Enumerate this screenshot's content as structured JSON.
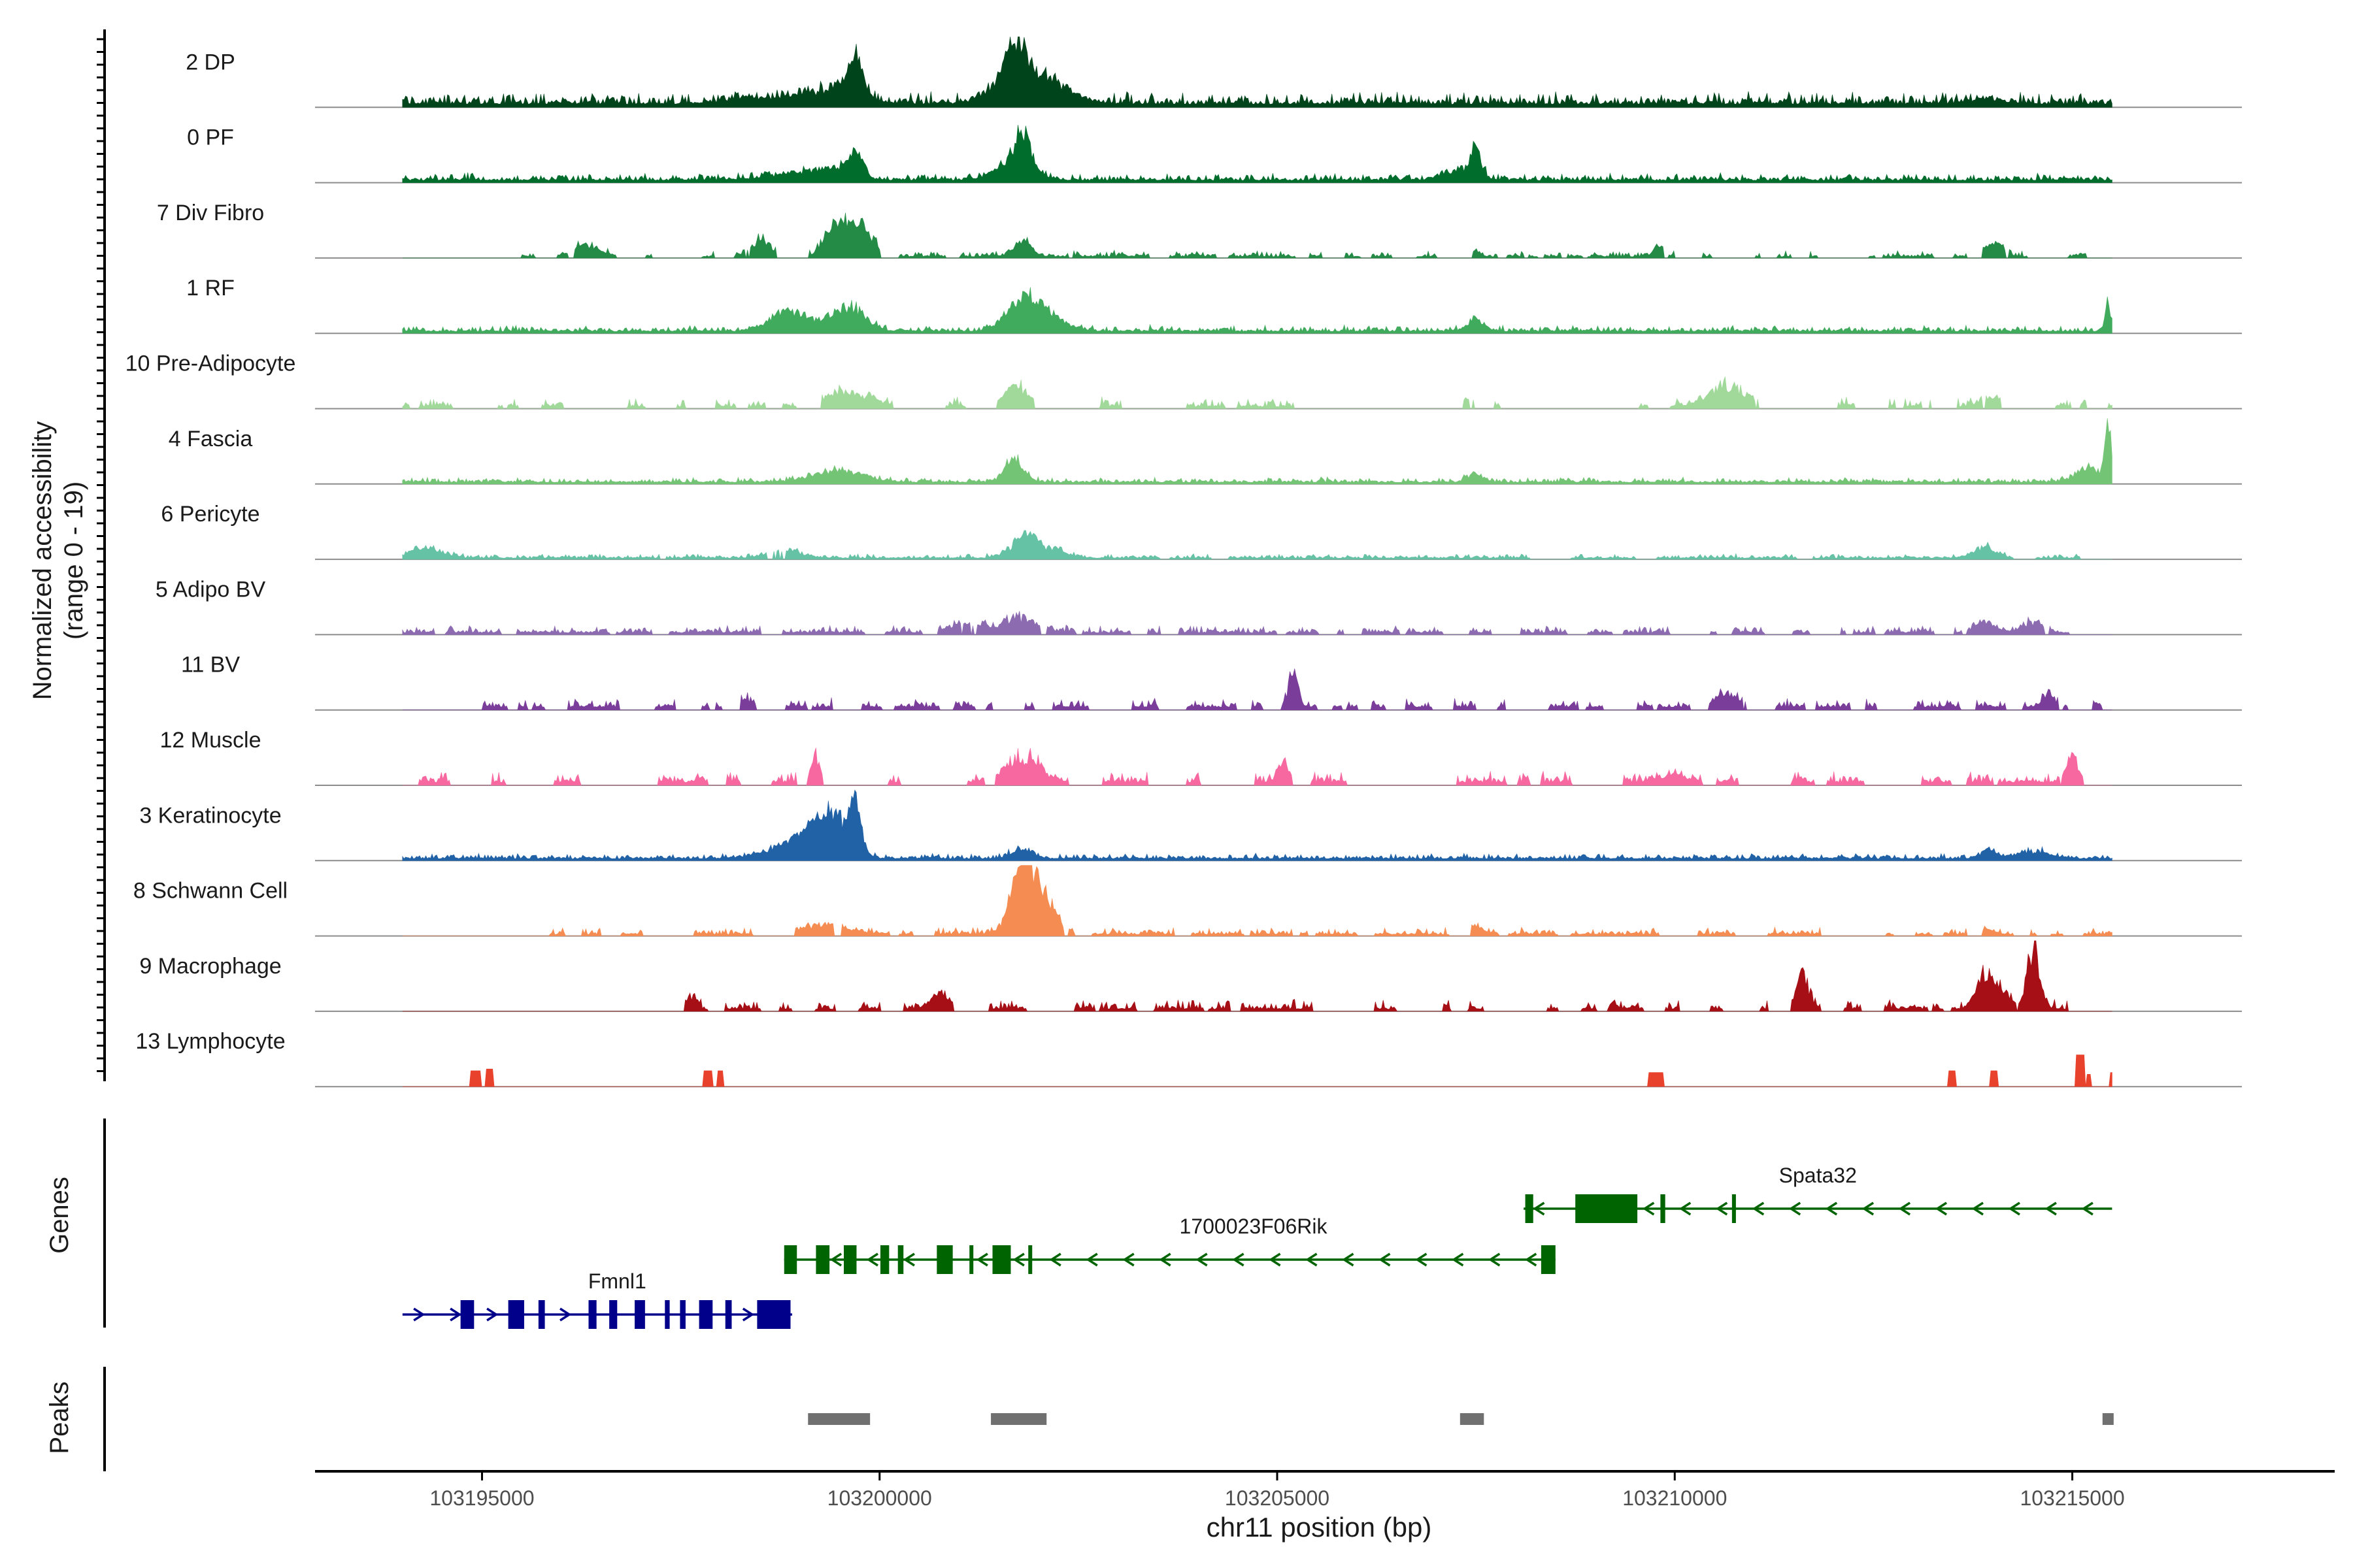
{
  "chart_data": {
    "type": "area",
    "title": "",
    "xlabel": "chr11 position (bp)",
    "ylabel_line1": "Normalized accessibility",
    "ylabel_line2": "(range 0 - 19)",
    "genes_label": "Genes",
    "peaks_label": "Peaks",
    "xlim": [
      103192900,
      103218300
    ],
    "data_start": 103194000,
    "data_end": 103215500,
    "xticks": [
      103195000,
      103200000,
      103205000,
      103210000,
      103215000
    ],
    "xtick_labels": [
      "103195000",
      "103200000",
      "103205000",
      "103210000",
      "103215000"
    ],
    "tracks": [
      {
        "name": "2 DP",
        "color": "#00441b",
        "base": 0.5,
        "noise": 0.7,
        "start": 103194000,
        "peaks": [
          [
            103198600,
            0.35,
            450
          ],
          [
            103199700,
            1.9,
            80
          ],
          [
            103199500,
            0.9,
            300
          ],
          [
            103201700,
            2.3,
            120
          ],
          [
            103201900,
            1.4,
            250
          ],
          [
            103202200,
            0.6,
            300
          ],
          [
            103201500,
            0.8,
            200
          ],
          [
            103213900,
            0.3,
            200
          ]
        ]
      },
      {
        "name": "0 PF",
        "color": "#006d2c",
        "base": 0.35,
        "noise": 0.6,
        "start": 103194000,
        "peaks": [
          [
            103199700,
            1.4,
            90
          ],
          [
            103199400,
            0.7,
            250
          ],
          [
            103198800,
            0.3,
            300
          ],
          [
            103201800,
            2.0,
            90
          ],
          [
            103201700,
            1.1,
            220
          ],
          [
            103207500,
            1.8,
            60
          ],
          [
            103207300,
            0.6,
            200
          ]
        ]
      },
      {
        "name": "7 Div Fibro",
        "color": "#238b45",
        "base": 0.2,
        "noise": 0.9,
        "sparse": 0.42,
        "start": 103195500,
        "peaks": [
          [
            103196300,
            0.7,
            150
          ],
          [
            103198500,
            1.1,
            120
          ],
          [
            103199700,
            2.2,
            180
          ],
          [
            103199400,
            1.3,
            120
          ],
          [
            103201800,
            1.0,
            110
          ],
          [
            103207500,
            0.3,
            60
          ],
          [
            103209800,
            0.5,
            60
          ],
          [
            103214000,
            0.9,
            120
          ],
          [
            103215300,
            0.4,
            100
          ]
        ]
      },
      {
        "name": "1 RF",
        "color": "#41ab5d",
        "base": 0.3,
        "noise": 0.6,
        "start": 103194000,
        "peaks": [
          [
            103198800,
            0.8,
            200
          ],
          [
            103199600,
            1.5,
            200
          ],
          [
            103199000,
            0.5,
            250
          ],
          [
            103201800,
            1.6,
            200
          ],
          [
            103202100,
            0.9,
            220
          ],
          [
            103207500,
            0.7,
            100
          ],
          [
            103215450,
            1.6,
            40
          ]
        ]
      },
      {
        "name": "10 Pre-Adipocyte",
        "color": "#a1d99b",
        "base": 0.3,
        "noise": 0.9,
        "sparse": 0.72,
        "start": 103194000,
        "peaks": [
          [
            103199600,
            1.1,
            250
          ],
          [
            103201700,
            1.3,
            150
          ],
          [
            103210700,
            1.3,
            250
          ],
          [
            103207400,
            0.6,
            80
          ],
          [
            103214000,
            0.8,
            120
          ],
          [
            103213200,
            0.5,
            80
          ]
        ]
      },
      {
        "name": "4 Fascia",
        "color": "#74c476",
        "base": 0.25,
        "noise": 0.6,
        "start": 103194000,
        "peaks": [
          [
            103199500,
            0.7,
            300
          ],
          [
            103201700,
            1.3,
            120
          ],
          [
            103207500,
            0.5,
            100
          ],
          [
            103215450,
            3.3,
            40
          ],
          [
            103215200,
            0.9,
            150
          ]
        ]
      },
      {
        "name": "6 Pericyte",
        "color": "#66c2a4",
        "base": 0.18,
        "noise": 0.7,
        "sparse": 0.15,
        "start": 103194000,
        "peaks": [
          [
            103194300,
            0.6,
            200
          ],
          [
            103198800,
            0.5,
            200
          ],
          [
            103201800,
            1.2,
            150
          ],
          [
            103202100,
            0.6,
            200
          ],
          [
            103213900,
            0.6,
            150
          ],
          [
            103215300,
            0.4,
            80
          ]
        ]
      },
      {
        "name": "5 Adipo BV",
        "color": "#8c6bb1",
        "base": 0.3,
        "noise": 0.7,
        "sparse": 0.35,
        "start": 103194000,
        "peaks": [
          [
            103201800,
            1.0,
            200
          ],
          [
            103201100,
            0.6,
            200
          ],
          [
            103213900,
            0.5,
            150
          ],
          [
            103214500,
            0.6,
            120
          ]
        ]
      },
      {
        "name": "11 BV",
        "color": "#7a3d9a",
        "base": 0.45,
        "noise": 0.6,
        "sparse": 0.58,
        "start": 103195000,
        "peaks": [
          [
            103205200,
            1.7,
            60
          ],
          [
            103210700,
            1.0,
            150
          ],
          [
            103214700,
            0.8,
            60
          ],
          [
            103198300,
            0.4,
            100
          ]
        ]
      },
      {
        "name": "12 Muscle",
        "color": "#f768a1",
        "base": 0.45,
        "noise": 0.7,
        "sparse": 0.62,
        "start": 103194200,
        "peaks": [
          [
            103199200,
            1.8,
            60
          ],
          [
            103201800,
            1.6,
            200
          ],
          [
            103205100,
            1.2,
            80
          ],
          [
            103215000,
            1.8,
            80
          ],
          [
            103210000,
            0.4,
            150
          ]
        ]
      },
      {
        "name": "3 Keratinocyte",
        "color": "#2161a6",
        "base": 0.3,
        "noise": 0.5,
        "start": 103194000,
        "peaks": [
          [
            103199700,
            3.0,
            70
          ],
          [
            103199400,
            2.2,
            200
          ],
          [
            103199100,
            0.9,
            300
          ],
          [
            103198800,
            0.4,
            300
          ],
          [
            103201800,
            0.6,
            120
          ],
          [
            103213950,
            0.5,
            100
          ],
          [
            103214500,
            0.4,
            200
          ]
        ]
      },
      {
        "name": "8 Schwann Cell",
        "color": "#f58c52",
        "base": 0.25,
        "noise": 0.8,
        "sparse": 0.3,
        "start": 103195500,
        "peaks": [
          [
            103201800,
            3.5,
            150
          ],
          [
            103202000,
            2.0,
            200
          ],
          [
            103199300,
            0.5,
            300
          ],
          [
            103207500,
            0.5,
            80
          ],
          [
            103213900,
            0.3,
            100
          ]
        ]
      },
      {
        "name": "9 Macrophage",
        "color": "#a50f15",
        "base": 0.35,
        "noise": 0.8,
        "sparse": 0.5,
        "start": 103197000,
        "peaks": [
          [
            103214500,
            3.7,
            80
          ],
          [
            103213900,
            1.8,
            100
          ],
          [
            103214100,
            1.0,
            120
          ],
          [
            103211600,
            2.0,
            80
          ],
          [
            103200800,
            1.1,
            120
          ],
          [
            103197600,
            0.7,
            60
          ],
          [
            103212500,
            0.4,
            100
          ]
        ]
      },
      {
        "name": "13 Lymphocyte",
        "color": "#e8412c",
        "base": 0.0,
        "noise": 0.0,
        "start": 103194000,
        "blocks": [
          [
            103194850,
            103194980,
            0.9
          ],
          [
            103195040,
            103195150,
            1.0
          ],
          [
            103197780,
            103197900,
            0.9
          ],
          [
            103197950,
            103198030,
            0.9
          ],
          [
            103209670,
            103209860,
            0.8
          ],
          [
            103213430,
            103213530,
            0.9
          ],
          [
            103213970,
            103214060,
            0.9
          ],
          [
            103215040,
            103215150,
            1.8
          ],
          [
            103215170,
            103215230,
            0.7
          ],
          [
            103215470,
            103215510,
            0.8
          ]
        ]
      }
    ],
    "genes": [
      {
        "name": "Fmnl1",
        "color": "#00008b",
        "strand": "+",
        "start": 103194000,
        "end": 103198900,
        "label_pos": 103196700,
        "row": 2,
        "exons": [
          [
            103194730,
            103194900,
            "cds"
          ],
          [
            103195330,
            103195530,
            "cds"
          ],
          [
            103195710,
            103195790,
            "cds"
          ],
          [
            103196340,
            103196440,
            "cds"
          ],
          [
            103196600,
            103196700,
            "cds"
          ],
          [
            103196920,
            103197050,
            "cds"
          ],
          [
            103197300,
            103197360,
            "cds"
          ],
          [
            103197490,
            103197560,
            "cds"
          ],
          [
            103197730,
            103197900,
            "cds"
          ],
          [
            103198060,
            103198140,
            "cds"
          ],
          [
            103198460,
            103198880,
            "cds"
          ]
        ]
      },
      {
        "name": "1700023F06Rik",
        "color": "#006400",
        "strand": "-",
        "start": 103198800,
        "end": 103208500,
        "label_pos": 103204700,
        "row": 1,
        "exons": [
          [
            103198800,
            103198960,
            "cds"
          ],
          [
            103199200,
            103199370,
            "cds"
          ],
          [
            103199550,
            103199710,
            "cds"
          ],
          [
            103200010,
            103200120,
            "cds"
          ],
          [
            103200230,
            103200300,
            "cds"
          ],
          [
            103200720,
            103200920,
            "cds"
          ],
          [
            103201130,
            103201170,
            "cds"
          ],
          [
            103201420,
            103201650,
            "cds"
          ],
          [
            103201870,
            103201900,
            "cds"
          ],
          [
            103208320,
            103208500,
            "cds"
          ]
        ]
      },
      {
        "name": "Spata32",
        "color": "#006400",
        "strand": "-",
        "start": 103208100,
        "end": 103215500,
        "label_pos": 103211800,
        "row": 0,
        "exons": [
          [
            103208120,
            103208220,
            "cds"
          ],
          [
            103208750,
            103209530,
            "cds"
          ],
          [
            103209820,
            103209880,
            "cds"
          ],
          [
            103210720,
            103210760,
            "cds"
          ]
        ]
      }
    ],
    "peaks": [
      [
        103199100,
        103199880
      ],
      [
        103201400,
        103202100
      ],
      [
        103207300,
        103207600
      ],
      [
        103215380,
        103215520
      ]
    ]
  }
}
